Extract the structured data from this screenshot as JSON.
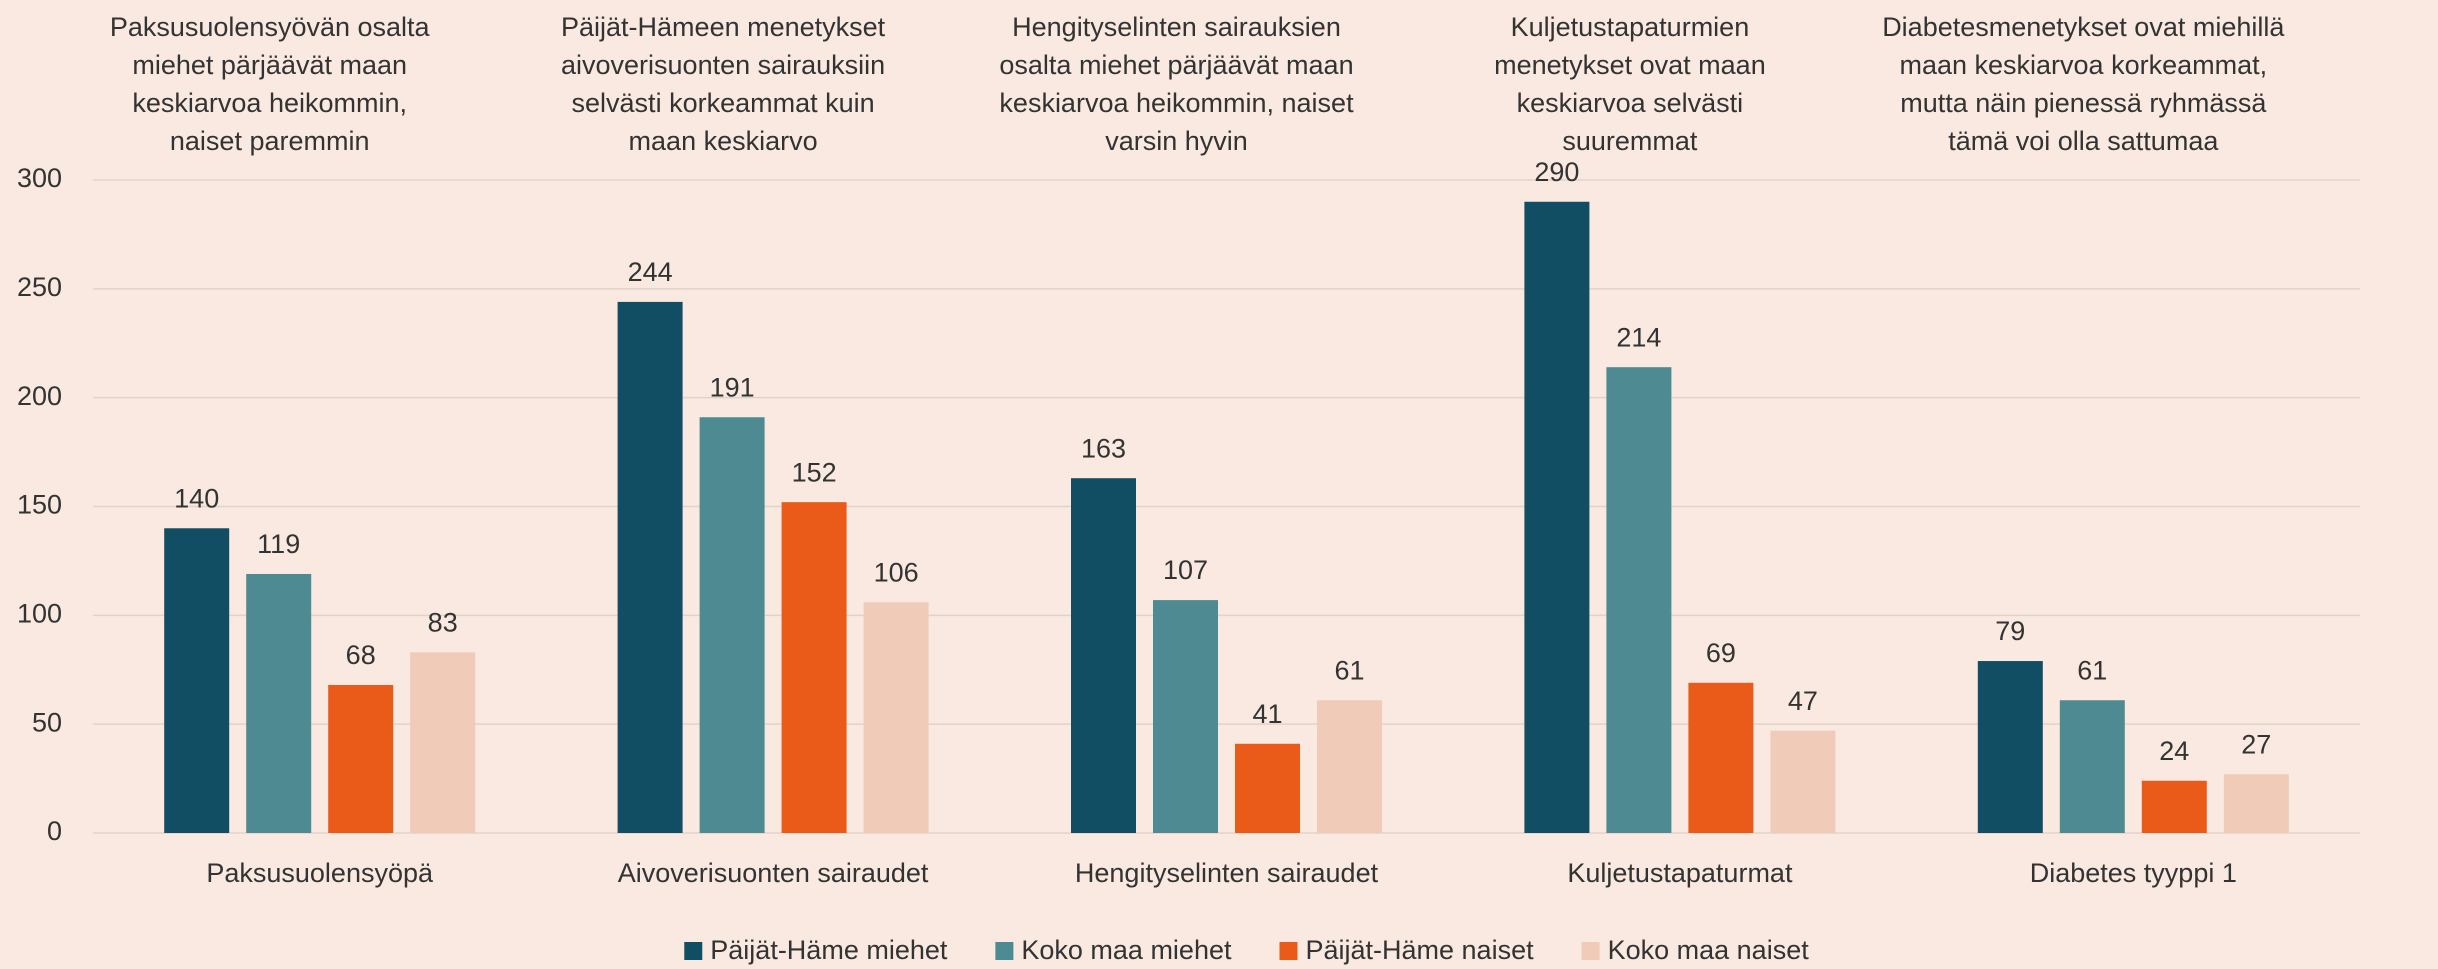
{
  "chart_data": {
    "type": "bar",
    "categories": [
      "Paksusuolensyöpä",
      "Aivoverisuonten sairaudet",
      "Hengityselinten sairaudet",
      "Kuljetustapaturmat",
      "Diabetes tyyppi 1"
    ],
    "annotations": [
      [
        "Paksusuolensyövän osalta",
        "miehet pärjäävät maan",
        "keskiarvoa heikommin,",
        "naiset paremmin"
      ],
      [
        "Päijät-Hämeen menetykset",
        "aivoverisuonten sairauksiin",
        "selvästi korkeammat kuin",
        "maan keskiarvo"
      ],
      [
        "Hengityselinten sairauksien",
        "osalta miehet pärjäävät maan",
        "keskiarvoa heikommin, naiset",
        "varsin hyvin"
      ],
      [
        "Kuljetustapaturmien",
        "menetykset ovat maan",
        "keskiarvoa selvästi",
        "suuremmat"
      ],
      [
        "Diabetesmenetykset ovat miehillä",
        "maan keskiarvoa korkeammat,",
        "mutta näin pienessä ryhmässä",
        "tämä voi olla sattumaa"
      ]
    ],
    "series": [
      {
        "name": "Päijät-Häme miehet",
        "color": "#124e63",
        "values": [
          140,
          244,
          163,
          290,
          79
        ]
      },
      {
        "name": "Koko maa miehet",
        "color": "#4e8a92",
        "values": [
          119,
          191,
          107,
          214,
          61
        ]
      },
      {
        "name": "Päijät-Häme naiset",
        "color": "#ea5b1a",
        "values": [
          68,
          152,
          41,
          69,
          24
        ]
      },
      {
        "name": "Koko maa naiset",
        "color": "#f0cbb8",
        "values": [
          83,
          106,
          61,
          47,
          27
        ]
      }
    ],
    "ylim": [
      0,
      300
    ],
    "yticks": [
      0,
      50,
      100,
      150,
      200,
      250,
      300
    ],
    "grid": true,
    "legend": "bottom"
  }
}
